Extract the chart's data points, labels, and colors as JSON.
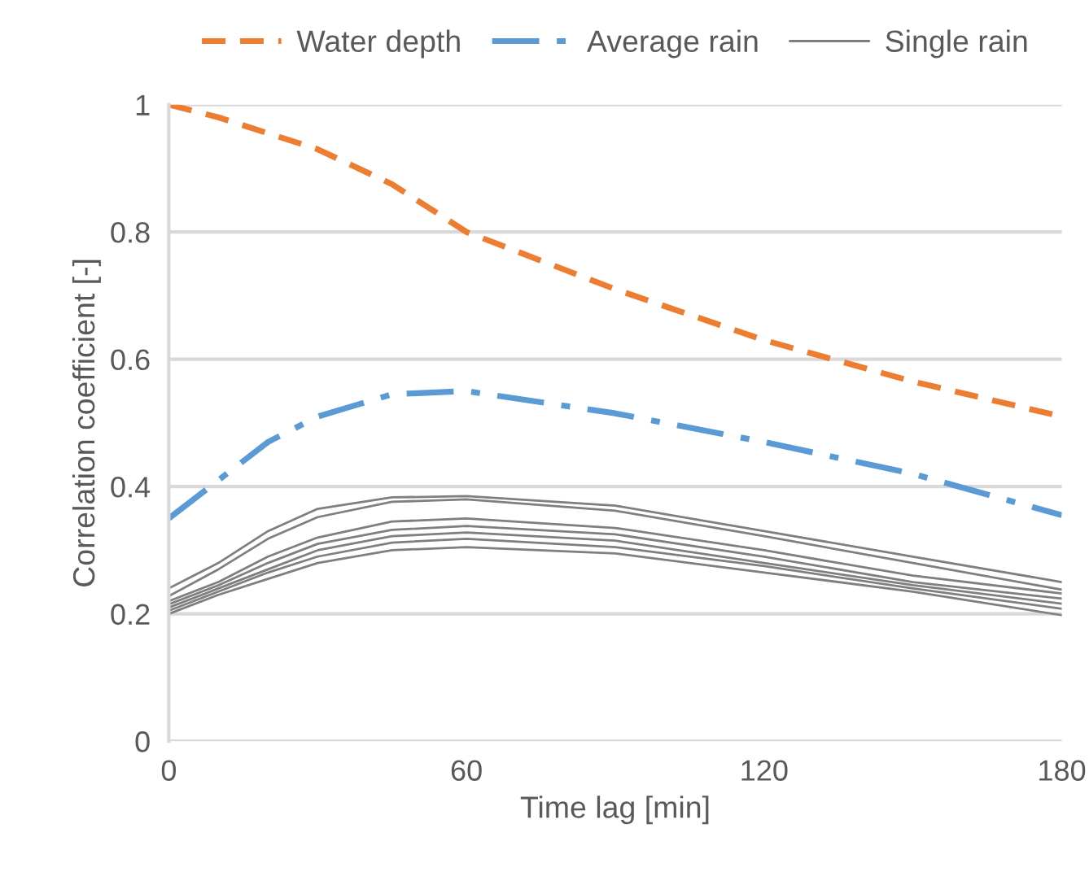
{
  "chart_data": {
    "type": "line",
    "xlabel": "Time lag [min]",
    "ylabel": "Correlation coefficient [-]",
    "x": [
      0,
      10,
      20,
      30,
      45,
      60,
      90,
      120,
      150,
      180
    ],
    "xlim": [
      0,
      180
    ],
    "xticks": [
      0,
      60,
      120,
      180
    ],
    "ylim": [
      0,
      1
    ],
    "yticks": [
      0,
      0.2,
      0.4,
      0.6,
      0.8,
      1
    ],
    "grid": "y",
    "legend": "top",
    "marker": "none",
    "series": [
      {
        "name": "Water depth",
        "color": "#ed7d31",
        "line_style": "dashed",
        "values": [
          1.0,
          0.98,
          0.955,
          0.93,
          0.875,
          0.8,
          0.71,
          0.63,
          0.565,
          0.51
        ]
      },
      {
        "name": "Average rain",
        "color": "#5b9bd5",
        "line_style": "dashdot",
        "values": [
          0.35,
          0.41,
          0.47,
          0.51,
          0.545,
          0.55,
          0.515,
          0.47,
          0.42,
          0.355
        ]
      },
      {
        "name": "Single rain",
        "color": "#7f7f7f",
        "line_style": "solid",
        "values": [
          0.24,
          0.28,
          0.33,
          0.365,
          0.383,
          0.385,
          0.37,
          0.33,
          0.29,
          0.25
        ]
      },
      {
        "color": "#7f7f7f",
        "line_style": "solid",
        "values": [
          0.228,
          0.27,
          0.318,
          0.352,
          0.376,
          0.38,
          0.362,
          0.322,
          0.28,
          0.238
        ]
      },
      {
        "color": "#7f7f7f",
        "line_style": "solid",
        "values": [
          0.22,
          0.25,
          0.29,
          0.32,
          0.345,
          0.35,
          0.335,
          0.3,
          0.26,
          0.232
        ]
      },
      {
        "color": "#7f7f7f",
        "line_style": "solid",
        "values": [
          0.215,
          0.245,
          0.28,
          0.31,
          0.332,
          0.338,
          0.325,
          0.29,
          0.25,
          0.224
        ]
      },
      {
        "color": "#7f7f7f",
        "line_style": "solid",
        "values": [
          0.21,
          0.24,
          0.27,
          0.3,
          0.322,
          0.328,
          0.315,
          0.28,
          0.245,
          0.216
        ]
      },
      {
        "color": "#7f7f7f",
        "line_style": "solid",
        "values": [
          0.205,
          0.235,
          0.265,
          0.29,
          0.312,
          0.318,
          0.305,
          0.275,
          0.24,
          0.208
        ]
      },
      {
        "color": "#7f7f7f",
        "line_style": "solid",
        "values": [
          0.2,
          0.23,
          0.255,
          0.28,
          0.3,
          0.305,
          0.295,
          0.265,
          0.235,
          0.198
        ]
      }
    ]
  }
}
